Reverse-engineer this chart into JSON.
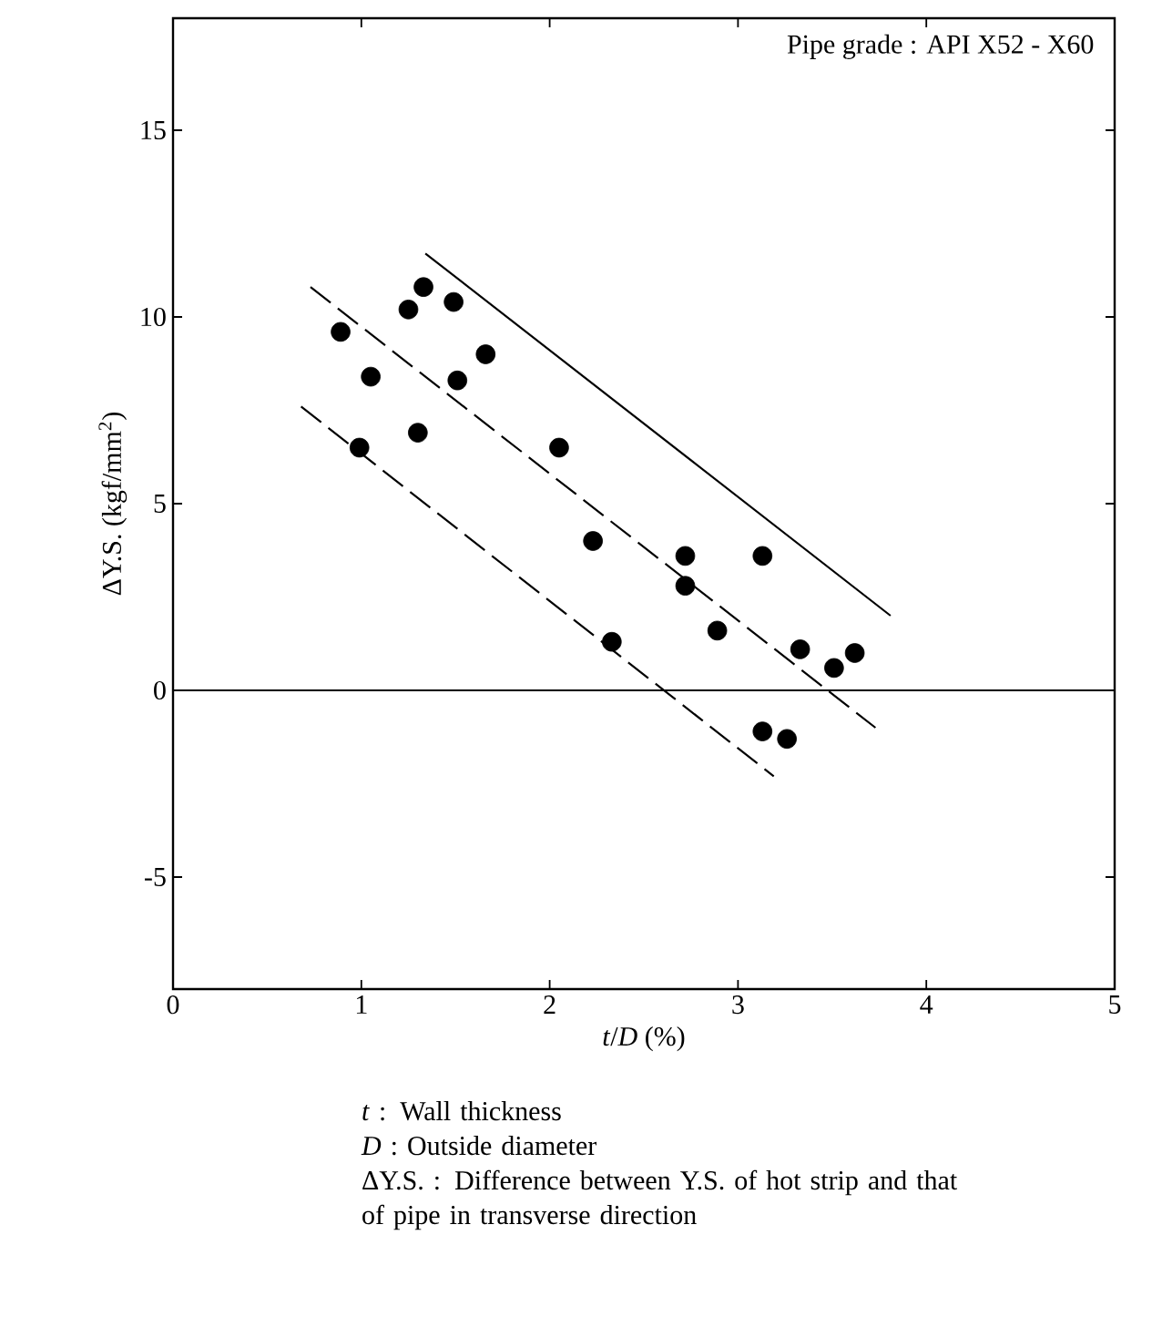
{
  "chart_data": {
    "type": "scatter",
    "xlabel": "*t*/*D* (%)",
    "ylabel": "ΔY.S. (kgf/mm$^{2}$)",
    "xlim": [
      0,
      5
    ],
    "ylim": [
      -8,
      18
    ],
    "xticks": [
      0,
      1,
      2,
      3,
      4,
      5
    ],
    "yticks": [
      -5,
      0,
      5,
      10,
      15
    ],
    "grid": false,
    "series": [
      {
        "color": "#000000",
        "marker": "circle",
        "x": [
          0.89,
          1.05,
          0.99,
          1.25,
          1.33,
          1.3,
          1.49,
          1.51,
          1.66,
          2.05,
          2.23,
          2.33,
          2.72,
          2.72,
          2.89,
          3.13,
          3.33,
          3.51,
          3.62,
          3.13,
          3.26
        ],
        "values": [
          9.6,
          8.4,
          6.5,
          10.2,
          10.8,
          6.9,
          10.4,
          8.3,
          9.0,
          6.5,
          4.0,
          1.3,
          3.6,
          2.8,
          1.6,
          3.6,
          1.1,
          0.6,
          1.0,
          -1.1,
          -1.3
        ]
      },
      {
        "type": "line",
        "color": "#000000",
        "marker": "none",
        "line_style": "solid",
        "x": [
          1.34,
          3.81
        ],
        "values": [
          11.7,
          2.0
        ]
      },
      {
        "type": "line",
        "color": "#000000",
        "marker": "none",
        "line_style": "dashed",
        "x": [
          0.73,
          3.73
        ],
        "values": [
          10.8,
          -1.0
        ]
      },
      {
        "type": "line",
        "color": "#000000",
        "marker": "none",
        "line_style": "dashed",
        "x": [
          0.68,
          3.19
        ],
        "values": [
          7.6,
          -2.3
        ]
      }
    ],
    "ref_lines": [
      {
        "axis": "y",
        "value": 0,
        "color": "#000000",
        "line_style": "solid"
      }
    ],
    "annotations": [
      "Pipe grade : API X52 - X60",
      "*t* : Wall thickness",
      "*D* : Outside diameter",
      "ΔY.S. : Difference between Y.S. of hot strip and that of pipe in transverse direction"
    ]
  }
}
